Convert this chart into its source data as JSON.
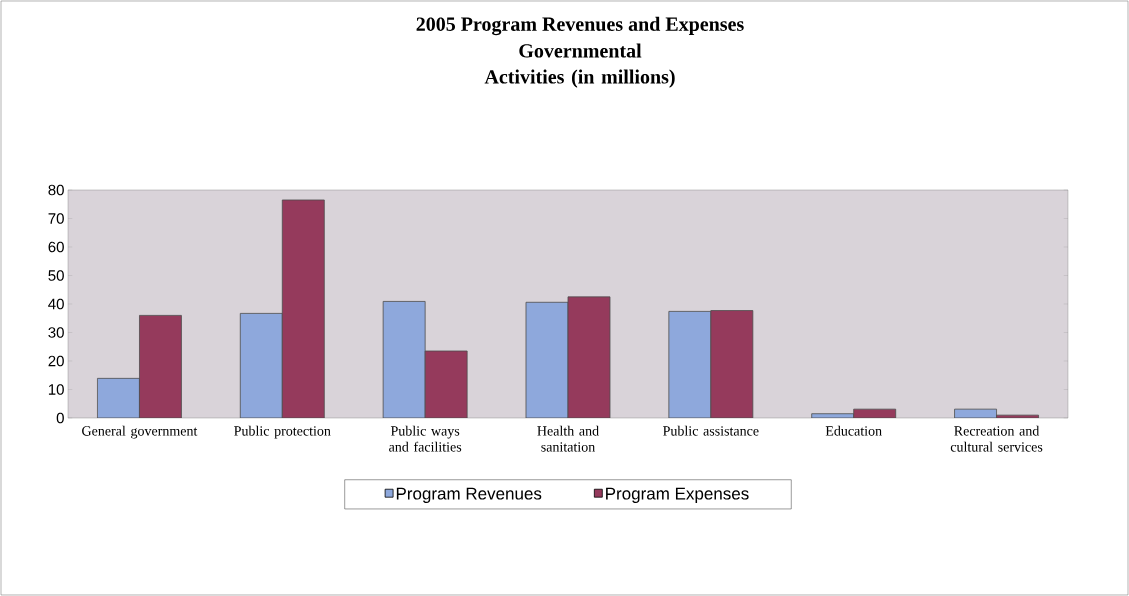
{
  "chart_data": {
    "type": "bar",
    "title": "2005 Program Revenues and Expenses",
    "subtitle": "Governmental Activities (in millions)",
    "categories": [
      "General government",
      "Public protection",
      "Public ways and facilities",
      "Health and sanitation",
      "Public assistance",
      "Education",
      "Recreation and cultural services"
    ],
    "series": [
      {
        "name": "Program Revenues",
        "color": "#8ea8dc",
        "values": [
          13.9,
          36.7,
          40.9,
          40.6,
          37.4,
          1.5,
          3.1
        ]
      },
      {
        "name": "Program Expenses",
        "color": "#953a5c",
        "values": [
          36.0,
          76.5,
          23.5,
          42.5,
          37.7,
          3.1,
          1.0
        ]
      }
    ],
    "ylim": [
      0,
      80
    ],
    "yticks": [
      0,
      10,
      20,
      30,
      40,
      50,
      60,
      70,
      80
    ],
    "grid": false,
    "legend": "bottom"
  }
}
